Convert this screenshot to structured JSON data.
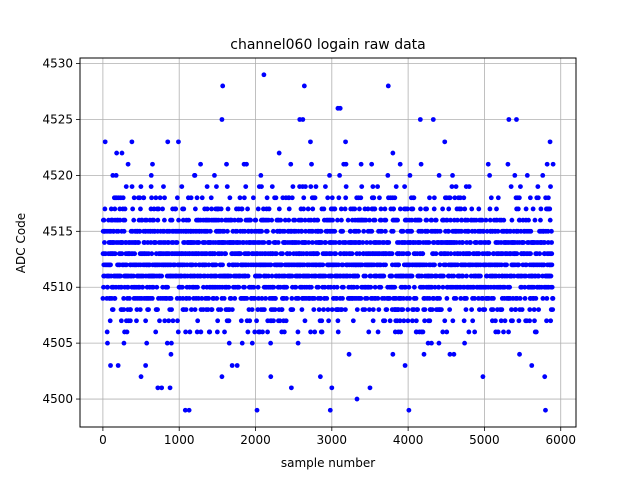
{
  "chart_data": {
    "type": "scatter",
    "title": "channel060 logain raw data",
    "xlabel": "sample number",
    "ylabel": "ADC Code",
    "xlim": [
      -300,
      6200
    ],
    "ylim": [
      4497.5,
      4530.5
    ],
    "xticks": [
      0,
      1000,
      2000,
      3000,
      4000,
      5000,
      6000
    ],
    "yticks": [
      4500,
      4505,
      4510,
      4515,
      4520,
      4525,
      4530
    ],
    "grid": true,
    "marker_color": "#0000ff",
    "n_samples": 5900,
    "dense_band": {
      "core_min": 4508,
      "core_max": 4517
    },
    "outliers": [
      {
        "x": 30,
        "y": 4523
      },
      {
        "x": 60,
        "y": 4505
      },
      {
        "x": 100,
        "y": 4503
      },
      {
        "x": 130,
        "y": 4520
      },
      {
        "x": 180,
        "y": 4522
      },
      {
        "x": 250,
        "y": 4522
      },
      {
        "x": 200,
        "y": 4503
      },
      {
        "x": 330,
        "y": 4521
      },
      {
        "x": 380,
        "y": 4523
      },
      {
        "x": 500,
        "y": 4502
      },
      {
        "x": 560,
        "y": 4503
      },
      {
        "x": 650,
        "y": 4521
      },
      {
        "x": 720,
        "y": 4501
      },
      {
        "x": 770,
        "y": 4501
      },
      {
        "x": 850,
        "y": 4523
      },
      {
        "x": 880,
        "y": 4501
      },
      {
        "x": 990,
        "y": 4523
      },
      {
        "x": 1080,
        "y": 4499
      },
      {
        "x": 1130,
        "y": 4499
      },
      {
        "x": 1200,
        "y": 4520
      },
      {
        "x": 1280,
        "y": 4521
      },
      {
        "x": 1560,
        "y": 4525
      },
      {
        "x": 1570,
        "y": 4528
      },
      {
        "x": 1560,
        "y": 4502
      },
      {
        "x": 1630,
        "y": 4519
      },
      {
        "x": 1760,
        "y": 4503
      },
      {
        "x": 1850,
        "y": 4521
      },
      {
        "x": 2020,
        "y": 4499
      },
      {
        "x": 2110,
        "y": 4529
      },
      {
        "x": 2200,
        "y": 4502
      },
      {
        "x": 2310,
        "y": 4522
      },
      {
        "x": 2470,
        "y": 4501
      },
      {
        "x": 2580,
        "y": 4525
      },
      {
        "x": 2620,
        "y": 4525
      },
      {
        "x": 2640,
        "y": 4528
      },
      {
        "x": 2720,
        "y": 4523
      },
      {
        "x": 2850,
        "y": 4502
      },
      {
        "x": 2980,
        "y": 4499
      },
      {
        "x": 3000,
        "y": 4501
      },
      {
        "x": 3080,
        "y": 4526
      },
      {
        "x": 3110,
        "y": 4526
      },
      {
        "x": 3180,
        "y": 4523
      },
      {
        "x": 3330,
        "y": 4500
      },
      {
        "x": 3500,
        "y": 4501
      },
      {
        "x": 3740,
        "y": 4528
      },
      {
        "x": 3800,
        "y": 4522
      },
      {
        "x": 3960,
        "y": 4503
      },
      {
        "x": 4010,
        "y": 4499
      },
      {
        "x": 4160,
        "y": 4525
      },
      {
        "x": 4330,
        "y": 4525
      },
      {
        "x": 4480,
        "y": 4523
      },
      {
        "x": 4600,
        "y": 4504
      },
      {
        "x": 4980,
        "y": 4502
      },
      {
        "x": 5050,
        "y": 4521
      },
      {
        "x": 5320,
        "y": 4525
      },
      {
        "x": 5420,
        "y": 4525
      },
      {
        "x": 5460,
        "y": 4504
      },
      {
        "x": 5620,
        "y": 4503
      },
      {
        "x": 5800,
        "y": 4499
      },
      {
        "x": 5790,
        "y": 4502
      },
      {
        "x": 5860,
        "y": 4523
      },
      {
        "x": 5900,
        "y": 4521
      }
    ]
  }
}
